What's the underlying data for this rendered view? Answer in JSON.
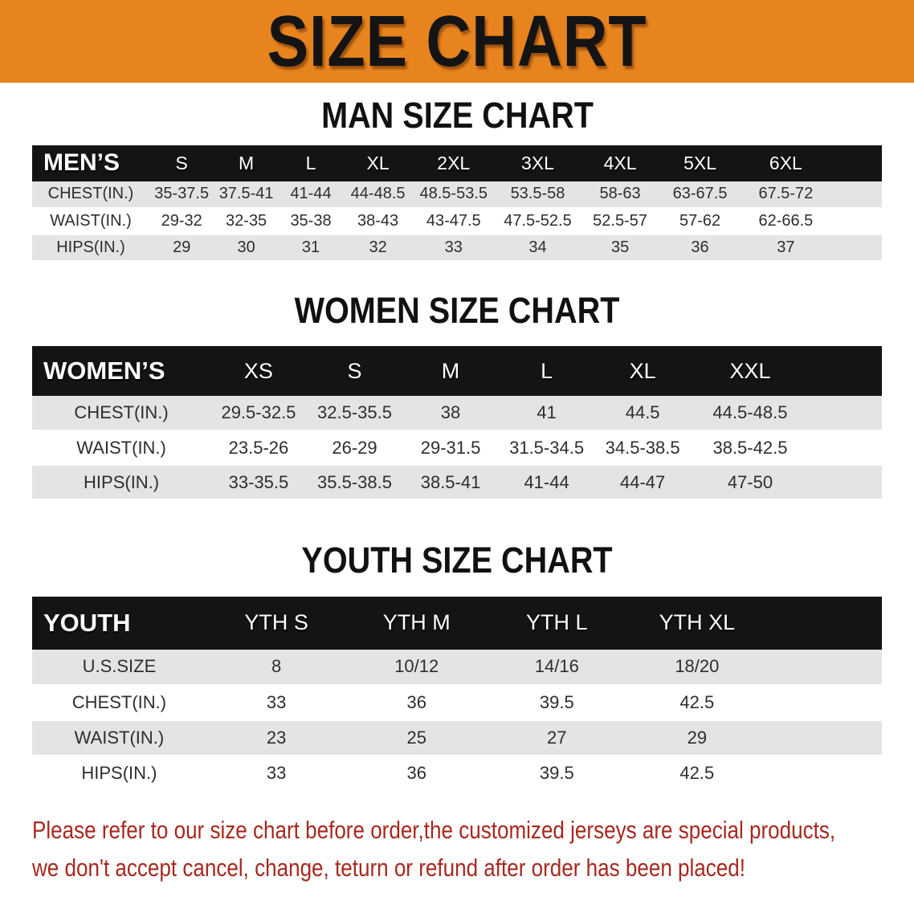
{
  "banner": {
    "title": "SIZE CHART"
  },
  "colors": {
    "banner_bg": "#E8841E",
    "header_bar_bg": "#141414",
    "row_stripe": "#E4E4E4",
    "note_text": "#A6291F",
    "heading_text": "#111111"
  },
  "sections": [
    {
      "heading": "MAN SIZE CHART",
      "table": {
        "header_label": "MEN’S",
        "columns": [
          "S",
          "M",
          "L",
          "XL",
          "2XL",
          "3XL",
          "4XL",
          "5XL",
          "6XL"
        ],
        "rows": [
          {
            "label": "CHEST(IN.)",
            "values": [
              "35-37.5",
              "37.5-41",
              "41-44",
              "44-48.5",
              "48.5-53.5",
              "53.5-58",
              "58-63",
              "63-67.5",
              "67.5-72"
            ]
          },
          {
            "label": "WAIST(IN.)",
            "values": [
              "29-32",
              "32-35",
              "35-38",
              "38-43",
              "43-47.5",
              "47.5-52.5",
              "52.5-57",
              "57-62",
              "62-66.5"
            ]
          },
          {
            "label": "HIPS(IN.)",
            "values": [
              "29",
              "30",
              "31",
              "32",
              "33",
              "34",
              "35",
              "36",
              "37"
            ]
          }
        ]
      }
    },
    {
      "heading": "WOMEN SIZE CHART",
      "table": {
        "header_label": "WOMEN’S",
        "columns": [
          "XS",
          "S",
          "M",
          "L",
          "XL",
          "XXL"
        ],
        "rows": [
          {
            "label": "CHEST(IN.)",
            "values": [
              "29.5-32.5",
              "32.5-35.5",
              "38",
              "41",
              "44.5",
              "44.5-48.5"
            ]
          },
          {
            "label": "WAIST(IN.)",
            "values": [
              "23.5-26",
              "26-29",
              "29-31.5",
              "31.5-34.5",
              "34.5-38.5",
              "38.5-42.5"
            ]
          },
          {
            "label": "HIPS(IN.)",
            "values": [
              "33-35.5",
              "35.5-38.5",
              "38.5-41",
              "41-44",
              "44-47",
              "47-50"
            ]
          }
        ]
      }
    },
    {
      "heading": "YOUTH SIZE CHART",
      "table": {
        "header_label": "YOUTH",
        "columns": [
          "YTH S",
          "YTH M",
          "YTH L",
          "YTH XL"
        ],
        "rows": [
          {
            "label": "U.S.SIZE",
            "values": [
              "8",
              "10/12",
              "14/16",
              "18/20"
            ]
          },
          {
            "label": "CHEST(IN.)",
            "values": [
              "33",
              "36",
              "39.5",
              "42.5"
            ]
          },
          {
            "label": "WAIST(IN.)",
            "values": [
              "23",
              "25",
              "27",
              "29"
            ]
          },
          {
            "label": "HIPS(IN.)",
            "values": [
              "33",
              "36",
              "39.5",
              "42.5"
            ]
          }
        ]
      }
    }
  ],
  "note": {
    "line1": "Please refer to our size chart before order,the customized jerseys are special products,",
    "line2": "we don't accept cancel, change, teturn or refund after order has been placed!"
  }
}
